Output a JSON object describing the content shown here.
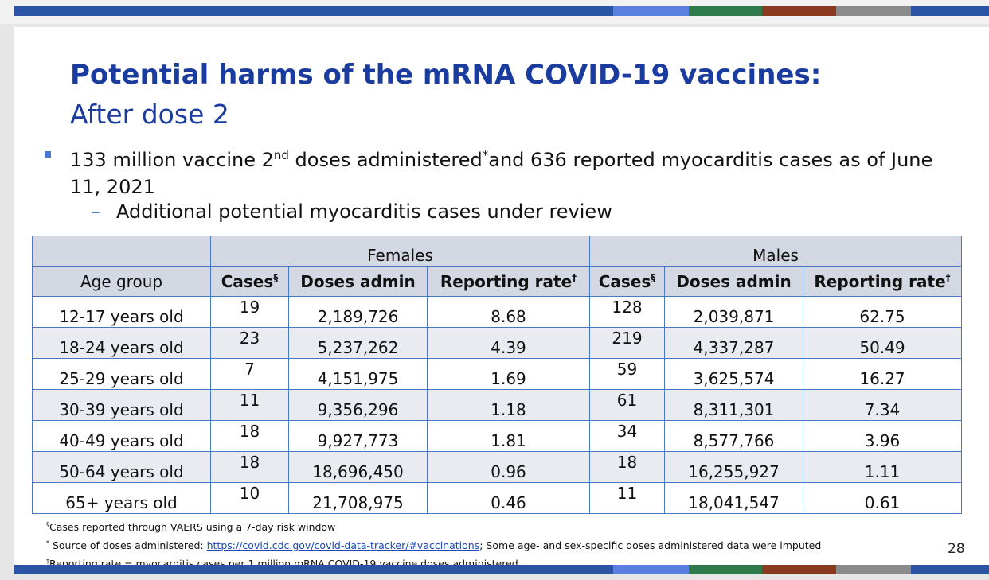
{
  "colors": {
    "title": "#1a3c9f",
    "bullet": "#4a77d4",
    "bar_main": "#2b55a4",
    "bar_accents": [
      "#5b7fe0",
      "#2f7a4a",
      "#8b3a22",
      "#8a8a8a",
      "#2b55a4"
    ]
  },
  "slide": {
    "title": "Potential harms of the mRNA COVID-19 vaccines:",
    "subtitle": "After dose 2",
    "bullet": {
      "icon": "square-bullet-icon",
      "text_a": "133 million vaccine 2",
      "sup_nd": "nd",
      "text_b": " doses administered",
      "sup_star": "*",
      "text_c": "and 636 reported myocarditis cases as of June 11, 2021"
    },
    "sub_bullet": {
      "dash": "–",
      "text": "Additional potential myocarditis cases under review"
    },
    "table": {
      "groups": {
        "females": "Females",
        "males": "Males"
      },
      "headers": {
        "age_group": "Age group",
        "cases": "Cases",
        "cases_mark": "§",
        "doses": "Doses admin",
        "rate": "Reporting rate",
        "rate_mark": "†"
      },
      "rows": [
        {
          "age": "12-17 years old",
          "f_cases": "19",
          "f_doses": "2,189,726",
          "f_rate": "8.68",
          "m_cases": "128",
          "m_doses": "2,039,871",
          "m_rate": "62.75"
        },
        {
          "age": "18-24 years old",
          "f_cases": "23",
          "f_doses": "5,237,262",
          "f_rate": "4.39",
          "m_cases": "219",
          "m_doses": "4,337,287",
          "m_rate": "50.49"
        },
        {
          "age": "25-29 years old",
          "f_cases": "7",
          "f_doses": "4,151,975",
          "f_rate": "1.69",
          "m_cases": "59",
          "m_doses": "3,625,574",
          "m_rate": "16.27"
        },
        {
          "age": "30-39 years old",
          "f_cases": "11",
          "f_doses": "9,356,296",
          "f_rate": "1.18",
          "m_cases": "61",
          "m_doses": "8,311,301",
          "m_rate": "7.34"
        },
        {
          "age": "40-49 years old",
          "f_cases": "18",
          "f_doses": "9,927,773",
          "f_rate": "1.81",
          "m_cases": "34",
          "m_doses": "8,577,766",
          "m_rate": "3.96"
        },
        {
          "age": "50-64 years old",
          "f_cases": "18",
          "f_doses": "18,696,450",
          "f_rate": "0.96",
          "m_cases": "18",
          "m_doses": "16,255,927",
          "m_rate": "1.11"
        },
        {
          "age": "65+ years old",
          "f_cases": "10",
          "f_doses": "21,708,975",
          "f_rate": "0.46",
          "m_cases": "11",
          "m_doses": "18,041,547",
          "m_rate": "0.61"
        }
      ]
    },
    "footnotes": {
      "f1_mark": "§",
      "f1_text": "Cases reported through VAERS using a 7-day risk window",
      "f2_mark": "*",
      "f2_prefix": " Source of doses administered: ",
      "f2_link": "https://covid.cdc.gov/covid-data-tracker/#vaccinations",
      "f2_suffix": "; Some age- and sex-specific doses administered data were imputed",
      "f3_mark": "†",
      "f3_text": "Reporting rate = myocarditis cases per 1 million mRNA COVID-19 vaccine doses administered"
    },
    "page_number": "28"
  }
}
